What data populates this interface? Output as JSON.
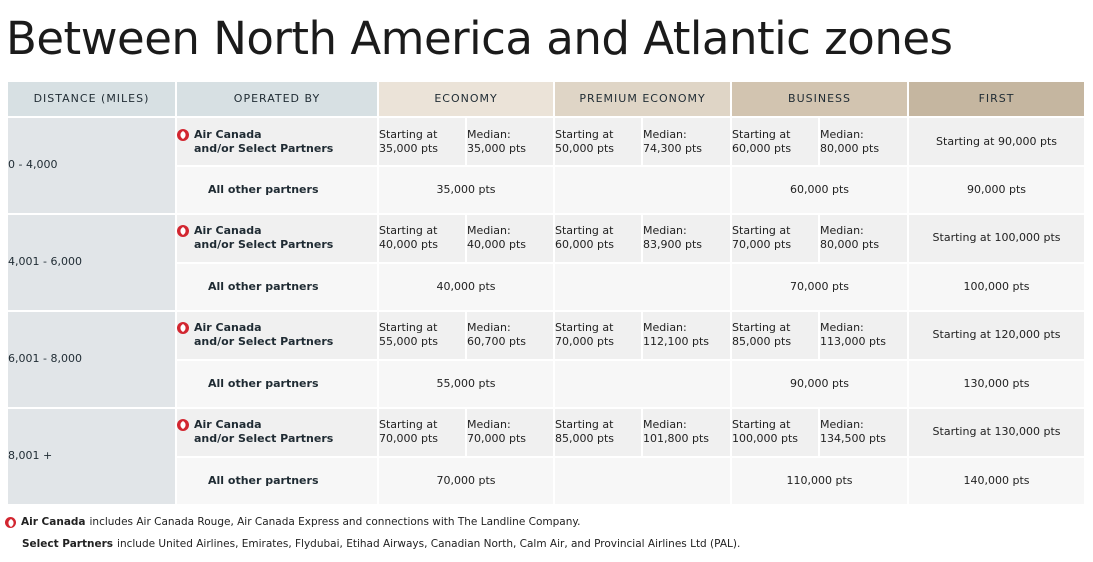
{
  "title": "Between North America and Atlantic zones",
  "headers": {
    "distance": "DISTANCE (MILES)",
    "operated_by": "OPERATED BY",
    "economy": "ECONOMY",
    "premium_economy": "PREMIUM ECONOMY",
    "business": "BUSINESS",
    "first": "FIRST"
  },
  "operator_labels": {
    "ac_line1": "Air Canada",
    "ac_line2": "and/or Select Partners",
    "other": "All other partners"
  },
  "rows": [
    {
      "distance": "0 - 4,000",
      "ac": {
        "eco_start": [
          "Starting at",
          "35,000 pts"
        ],
        "eco_median": [
          "Median:",
          "35,000 pts"
        ],
        "prem_start": [
          "Starting at",
          "50,000 pts"
        ],
        "prem_median": [
          "Median:",
          "74,300 pts"
        ],
        "bus_start": [
          "Starting at",
          "60,000 pts"
        ],
        "bus_median": [
          "Median:",
          "80,000 pts"
        ],
        "first": "Starting at 90,000 pts"
      },
      "other": {
        "eco": "35,000 pts",
        "bus": "60,000 pts",
        "first": "90,000 pts"
      }
    },
    {
      "distance": "4,001 - 6,000",
      "ac": {
        "eco_start": [
          "Starting at",
          "40,000 pts"
        ],
        "eco_median": [
          "Median:",
          "40,000 pts"
        ],
        "prem_start": [
          "Starting at",
          "60,000 pts"
        ],
        "prem_median": [
          "Median:",
          "83,900 pts"
        ],
        "bus_start": [
          "Starting at",
          "70,000 pts"
        ],
        "bus_median": [
          "Median:",
          "80,000 pts"
        ],
        "first": "Starting at 100,000 pts"
      },
      "other": {
        "eco": "40,000 pts",
        "bus": "70,000 pts",
        "first": "100,000 pts"
      }
    },
    {
      "distance": "6,001 - 8,000",
      "ac": {
        "eco_start": [
          "Starting at",
          "55,000 pts"
        ],
        "eco_median": [
          "Median:",
          "60,700 pts"
        ],
        "prem_start": [
          "Starting at",
          "70,000 pts"
        ],
        "prem_median": [
          "Median:",
          "112,100 pts"
        ],
        "bus_start": [
          "Starting at",
          "85,000 pts"
        ],
        "bus_median": [
          "Median:",
          "113,000 pts"
        ],
        "first": "Starting at 120,000 pts"
      },
      "other": {
        "eco": "55,000 pts",
        "bus": "90,000 pts",
        "first": "130,000 pts"
      }
    },
    {
      "distance": "8,001 +",
      "ac": {
        "eco_start": [
          "Starting at",
          "70,000 pts"
        ],
        "eco_median": [
          "Median:",
          "70,000 pts"
        ],
        "prem_start": [
          "Starting at",
          "85,000 pts"
        ],
        "prem_median": [
          "Median:",
          "101,800 pts"
        ],
        "bus_start": [
          "Starting at",
          "100,000 pts"
        ],
        "bus_median": [
          "Median:",
          "134,500 pts"
        ],
        "first": "Starting at 130,000 pts"
      },
      "other": {
        "eco": "70,000 pts",
        "bus": "110,000 pts",
        "first": "140,000 pts"
      }
    }
  ],
  "notes": {
    "line1_bold": "Air Canada",
    "line1_text": "includes Air Canada Rouge, Air Canada Express and connections with The Landline Company.",
    "line2_bold": "Select Partners",
    "line2_text": "include United Airlines, Emirates, Flydubai, Etihad Airways, Canadian North, Calm Air, and Provincial Airlines Ltd (PAL)."
  },
  "colors": {
    "brand_red": "#d22630",
    "header_blue": "#d7e0e3",
    "economy": "#ebe3d8",
    "premium_economy": "#dfd5c6",
    "business": "#d2c4b0",
    "first": "#c5b6a0"
  }
}
